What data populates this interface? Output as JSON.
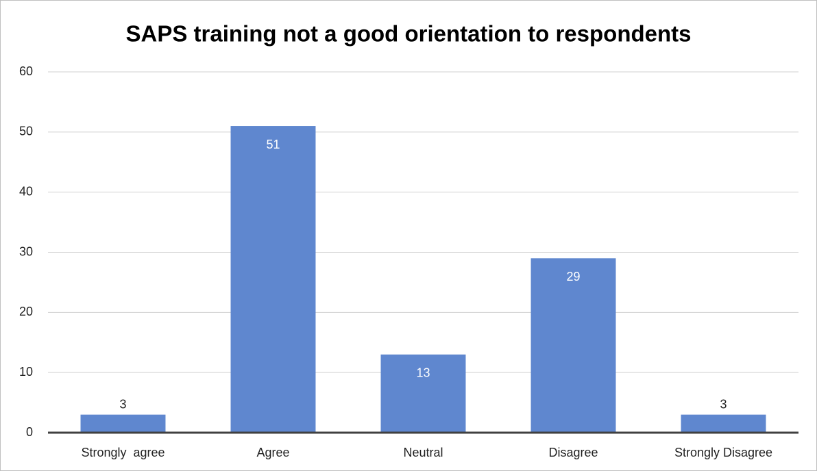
{
  "chart_data": {
    "type": "bar",
    "title": "SAPS training not a good orientation to respondents",
    "categories": [
      "Strongly  agree",
      "Agree",
      "Neutral",
      "Disagree",
      "Strongly Disagree"
    ],
    "values": [
      3,
      51,
      13,
      29,
      3
    ],
    "color": "#5f87cf",
    "ylim": [
      0,
      60
    ],
    "yticks": [
      0,
      10,
      20,
      30,
      40,
      50,
      60
    ],
    "grid": true
  }
}
